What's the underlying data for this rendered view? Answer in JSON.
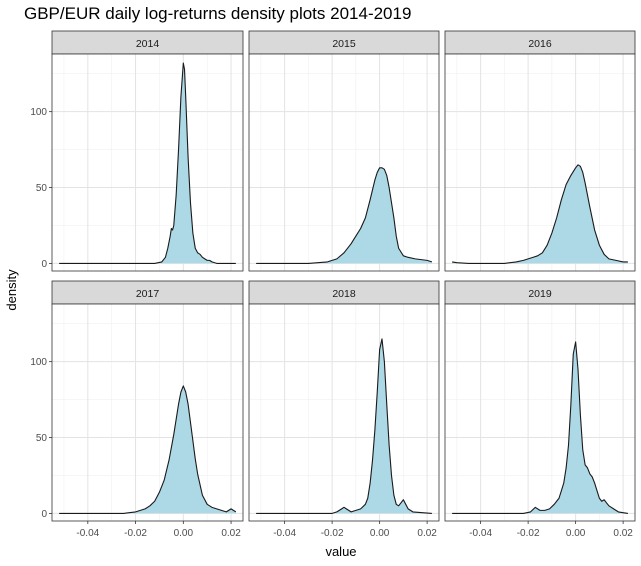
{
  "chart_data": {
    "type": "area",
    "title": "GBP/EUR daily log-returns density plots 2014-2019",
    "xlabel": "value",
    "ylabel": "density",
    "xlim": [
      -0.055,
      0.025
    ],
    "ylim": [
      -5,
      138
    ],
    "x_ticks": [
      -0.04,
      -0.02,
      0.0,
      0.02
    ],
    "x_tick_labels": [
      "-0.04",
      "-0.02",
      "0.00",
      "0.02"
    ],
    "y_ticks": [
      0,
      50,
      100
    ],
    "y_tick_labels": [
      "0",
      "50",
      "100"
    ],
    "grid": true,
    "fill_color": "#add8e6",
    "line_color": "#1a1a1a",
    "strip_color": "#d9d9d9",
    "facets": [
      {
        "label": "2014",
        "x": [
          -0.052,
          -0.02,
          -0.012,
          -0.009,
          -0.0075,
          -0.0065,
          -0.0055,
          -0.005,
          -0.0045,
          -0.004,
          -0.003,
          -0.002,
          -0.001,
          0.0,
          0.0005,
          0.001,
          0.002,
          0.003,
          0.004,
          0.005,
          0.006,
          0.007,
          0.008,
          0.009,
          0.01,
          0.011,
          0.012,
          0.014,
          0.022
        ],
        "y": [
          0,
          0,
          0,
          1,
          4,
          10,
          18,
          23,
          22,
          25,
          45,
          75,
          110,
          132,
          128,
          110,
          70,
          40,
          20,
          10,
          7,
          6,
          4,
          3,
          2,
          2,
          1,
          0,
          0
        ]
      },
      {
        "label": "2015",
        "x": [
          -0.052,
          -0.03,
          -0.022,
          -0.018,
          -0.015,
          -0.012,
          -0.01,
          -0.008,
          -0.006,
          -0.004,
          -0.002,
          -0.001,
          0.0,
          0.001,
          0.002,
          0.003,
          0.004,
          0.005,
          0.006,
          0.007,
          0.008,
          0.01,
          0.012,
          0.015,
          0.02,
          0.022
        ],
        "y": [
          0,
          0,
          1,
          3,
          7,
          13,
          18,
          23,
          30,
          42,
          55,
          60,
          63,
          63,
          62,
          58,
          50,
          40,
          30,
          18,
          10,
          5,
          4,
          3,
          2,
          1
        ]
      },
      {
        "label": "2016",
        "x": [
          -0.052,
          -0.05,
          -0.045,
          -0.03,
          -0.025,
          -0.022,
          -0.02,
          -0.018,
          -0.016,
          -0.014,
          -0.012,
          -0.01,
          -0.008,
          -0.006,
          -0.004,
          -0.002,
          0.0,
          0.001,
          0.002,
          0.003,
          0.004,
          0.005,
          0.006,
          0.008,
          0.01,
          0.012,
          0.014,
          0.017,
          0.02,
          0.022
        ],
        "y": [
          1,
          0.5,
          0,
          0,
          1,
          2,
          3,
          4,
          5,
          7,
          12,
          20,
          30,
          42,
          52,
          58,
          63,
          65,
          64,
          60,
          53,
          45,
          37,
          22,
          12,
          6,
          3,
          2,
          1,
          1
        ]
      },
      {
        "label": "2017",
        "x": [
          -0.052,
          -0.025,
          -0.02,
          -0.018,
          -0.016,
          -0.014,
          -0.012,
          -0.01,
          -0.008,
          -0.006,
          -0.004,
          -0.002,
          -0.001,
          0.0,
          0.001,
          0.002,
          0.003,
          0.004,
          0.005,
          0.006,
          0.008,
          0.01,
          0.012,
          0.014,
          0.016,
          0.018,
          0.02,
          0.022
        ],
        "y": [
          0,
          0,
          1,
          2,
          3,
          5,
          8,
          14,
          22,
          35,
          52,
          72,
          80,
          84,
          80,
          72,
          60,
          48,
          36,
          26,
          12,
          6,
          4,
          3,
          2,
          1,
          3,
          1
        ]
      },
      {
        "label": "2018",
        "x": [
          -0.052,
          -0.02,
          -0.018,
          -0.016,
          -0.015,
          -0.014,
          -0.012,
          -0.01,
          -0.008,
          -0.006,
          -0.005,
          -0.004,
          -0.003,
          -0.002,
          -0.001,
          0.0,
          0.001,
          0.002,
          0.003,
          0.004,
          0.005,
          0.006,
          0.007,
          0.008,
          0.009,
          0.01,
          0.011,
          0.012,
          0.014,
          0.022
        ],
        "y": [
          0,
          0,
          1,
          3,
          4,
          3,
          1,
          2,
          3,
          6,
          10,
          20,
          35,
          55,
          80,
          108,
          115,
          100,
          72,
          45,
          25,
          12,
          6,
          5,
          7,
          9,
          6,
          3,
          1,
          0
        ]
      },
      {
        "label": "2019",
        "x": [
          -0.052,
          -0.022,
          -0.019,
          -0.017,
          -0.015,
          -0.013,
          -0.011,
          -0.009,
          -0.008,
          -0.007,
          -0.006,
          -0.005,
          -0.004,
          -0.003,
          -0.002,
          -0.001,
          0.0,
          0.001,
          0.002,
          0.003,
          0.004,
          0.005,
          0.006,
          0.007,
          0.008,
          0.009,
          0.01,
          0.011,
          0.012,
          0.013,
          0.014,
          0.016,
          0.018,
          0.022
        ],
        "y": [
          0,
          0,
          1,
          4,
          2,
          2,
          3,
          6,
          8,
          10,
          15,
          20,
          30,
          45,
          72,
          105,
          113,
          95,
          65,
          42,
          32,
          30,
          26,
          24,
          20,
          15,
          10,
          8,
          9,
          7,
          5,
          3,
          1,
          0
        ]
      }
    ]
  }
}
